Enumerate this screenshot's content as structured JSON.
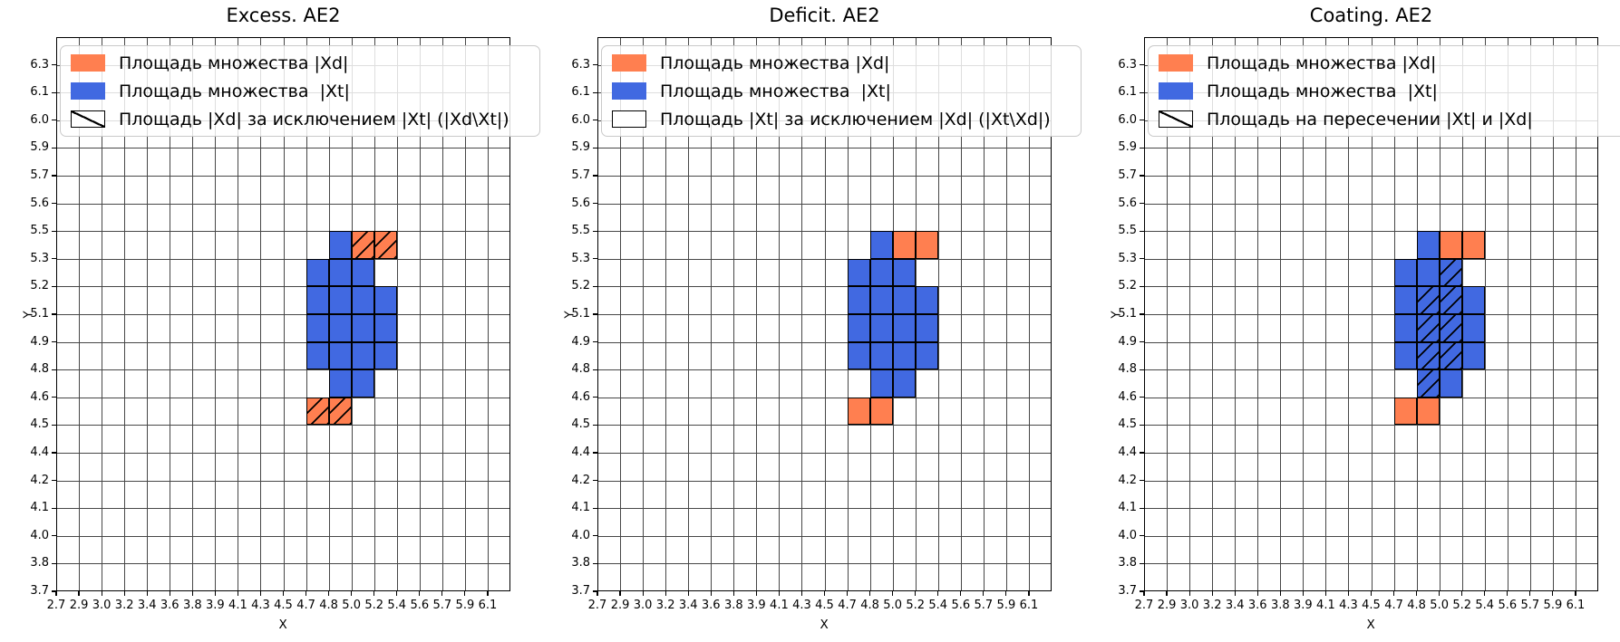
{
  "colors": {
    "xd_orange": "#FF7F50",
    "xt_blue": "#4169E1",
    "grid": "#474747",
    "legend_border": "#c9c9c9"
  },
  "axes": {
    "x_label": "X",
    "y_label": "Y",
    "x_ticks": [
      "2.7",
      "2.9",
      "3.0",
      "3.2",
      "3.4",
      "3.6",
      "3.8",
      "3.9",
      "4.1",
      "4.3",
      "4.5",
      "4.7",
      "4.8",
      "5.0",
      "5.2",
      "5.4",
      "5.6",
      "5.7",
      "5.9",
      "6.1"
    ],
    "y_ticks": [
      "3.7",
      "3.8",
      "4.0",
      "4.1",
      "4.2",
      "4.4",
      "4.5",
      "4.6",
      "4.8",
      "4.9",
      "5.1",
      "5.2",
      "5.3",
      "5.5",
      "5.6",
      "5.7",
      "5.9",
      "6.0",
      "6.1",
      "6.3"
    ]
  },
  "chart_data": [
    {
      "type": "heatmap",
      "title": "Excess. AE2",
      "xlabel": "X",
      "ylabel": "Y",
      "legend": [
        {
          "swatch": "xd",
          "label": "Площадь множества |Xd|"
        },
        {
          "swatch": "xt",
          "label": "Площадь множества  |Xt|"
        },
        {
          "swatch": "hatch",
          "label": "Площадь |Xd| за исключением |Xt| (|Xd\\Xt|)"
        }
      ],
      "cells": {
        "blue": [
          [
            12,
            12
          ],
          [
            11,
            11
          ],
          [
            12,
            11
          ],
          [
            13,
            11
          ],
          [
            11,
            10
          ],
          [
            12,
            10
          ],
          [
            13,
            10
          ],
          [
            14,
            10
          ],
          [
            11,
            9
          ],
          [
            12,
            9
          ],
          [
            13,
            9
          ],
          [
            14,
            9
          ],
          [
            11,
            8
          ],
          [
            12,
            8
          ],
          [
            13,
            8
          ],
          [
            14,
            8
          ],
          [
            12,
            7
          ],
          [
            13,
            7
          ]
        ],
        "blue_hatched": [],
        "orange": [],
        "orange_hatched": [
          [
            13,
            12
          ],
          [
            14,
            12
          ],
          [
            11,
            6
          ],
          [
            12,
            6
          ]
        ]
      }
    },
    {
      "type": "heatmap",
      "title": "Deficit. AE2",
      "xlabel": "X",
      "ylabel": "Y",
      "legend": [
        {
          "swatch": "xd",
          "label": "Площадь множества |Xd|"
        },
        {
          "swatch": "xt",
          "label": "Площадь множества  |Xt|"
        },
        {
          "swatch": "empty",
          "label": "Площадь |Xt| за исключением |Xd| (|Xt\\Xd|)"
        }
      ],
      "cells": {
        "blue": [
          [
            12,
            12
          ],
          [
            11,
            11
          ],
          [
            12,
            11
          ],
          [
            13,
            11
          ],
          [
            11,
            10
          ],
          [
            12,
            10
          ],
          [
            13,
            10
          ],
          [
            14,
            10
          ],
          [
            11,
            9
          ],
          [
            12,
            9
          ],
          [
            13,
            9
          ],
          [
            14,
            9
          ],
          [
            11,
            8
          ],
          [
            12,
            8
          ],
          [
            13,
            8
          ],
          [
            14,
            8
          ],
          [
            12,
            7
          ],
          [
            13,
            7
          ]
        ],
        "blue_hatched": [],
        "orange": [
          [
            13,
            12
          ],
          [
            14,
            12
          ],
          [
            11,
            6
          ],
          [
            12,
            6
          ]
        ],
        "orange_hatched": []
      }
    },
    {
      "type": "heatmap",
      "title": "Coating. AE2",
      "xlabel": "X",
      "ylabel": "Y",
      "legend": [
        {
          "swatch": "xd",
          "label": "Площадь множества |Xd|"
        },
        {
          "swatch": "xt",
          "label": "Площадь множества  |Xt|"
        },
        {
          "swatch": "hatch",
          "label": "Площадь на пересечении |Xt| и |Xd|"
        }
      ],
      "cells": {
        "blue": [
          [
            12,
            12
          ],
          [
            11,
            11
          ],
          [
            12,
            11
          ],
          [
            11,
            10
          ],
          [
            14,
            10
          ],
          [
            11,
            9
          ],
          [
            14,
            9
          ],
          [
            11,
            8
          ],
          [
            14,
            8
          ],
          [
            13,
            7
          ]
        ],
        "blue_hatched": [
          [
            13,
            11
          ],
          [
            12,
            10
          ],
          [
            13,
            10
          ],
          [
            12,
            9
          ],
          [
            13,
            9
          ],
          [
            12,
            8
          ],
          [
            13,
            8
          ],
          [
            12,
            7
          ]
        ],
        "orange": [
          [
            13,
            12
          ],
          [
            14,
            12
          ],
          [
            11,
            6
          ],
          [
            12,
            6
          ]
        ],
        "orange_hatched": []
      }
    }
  ]
}
